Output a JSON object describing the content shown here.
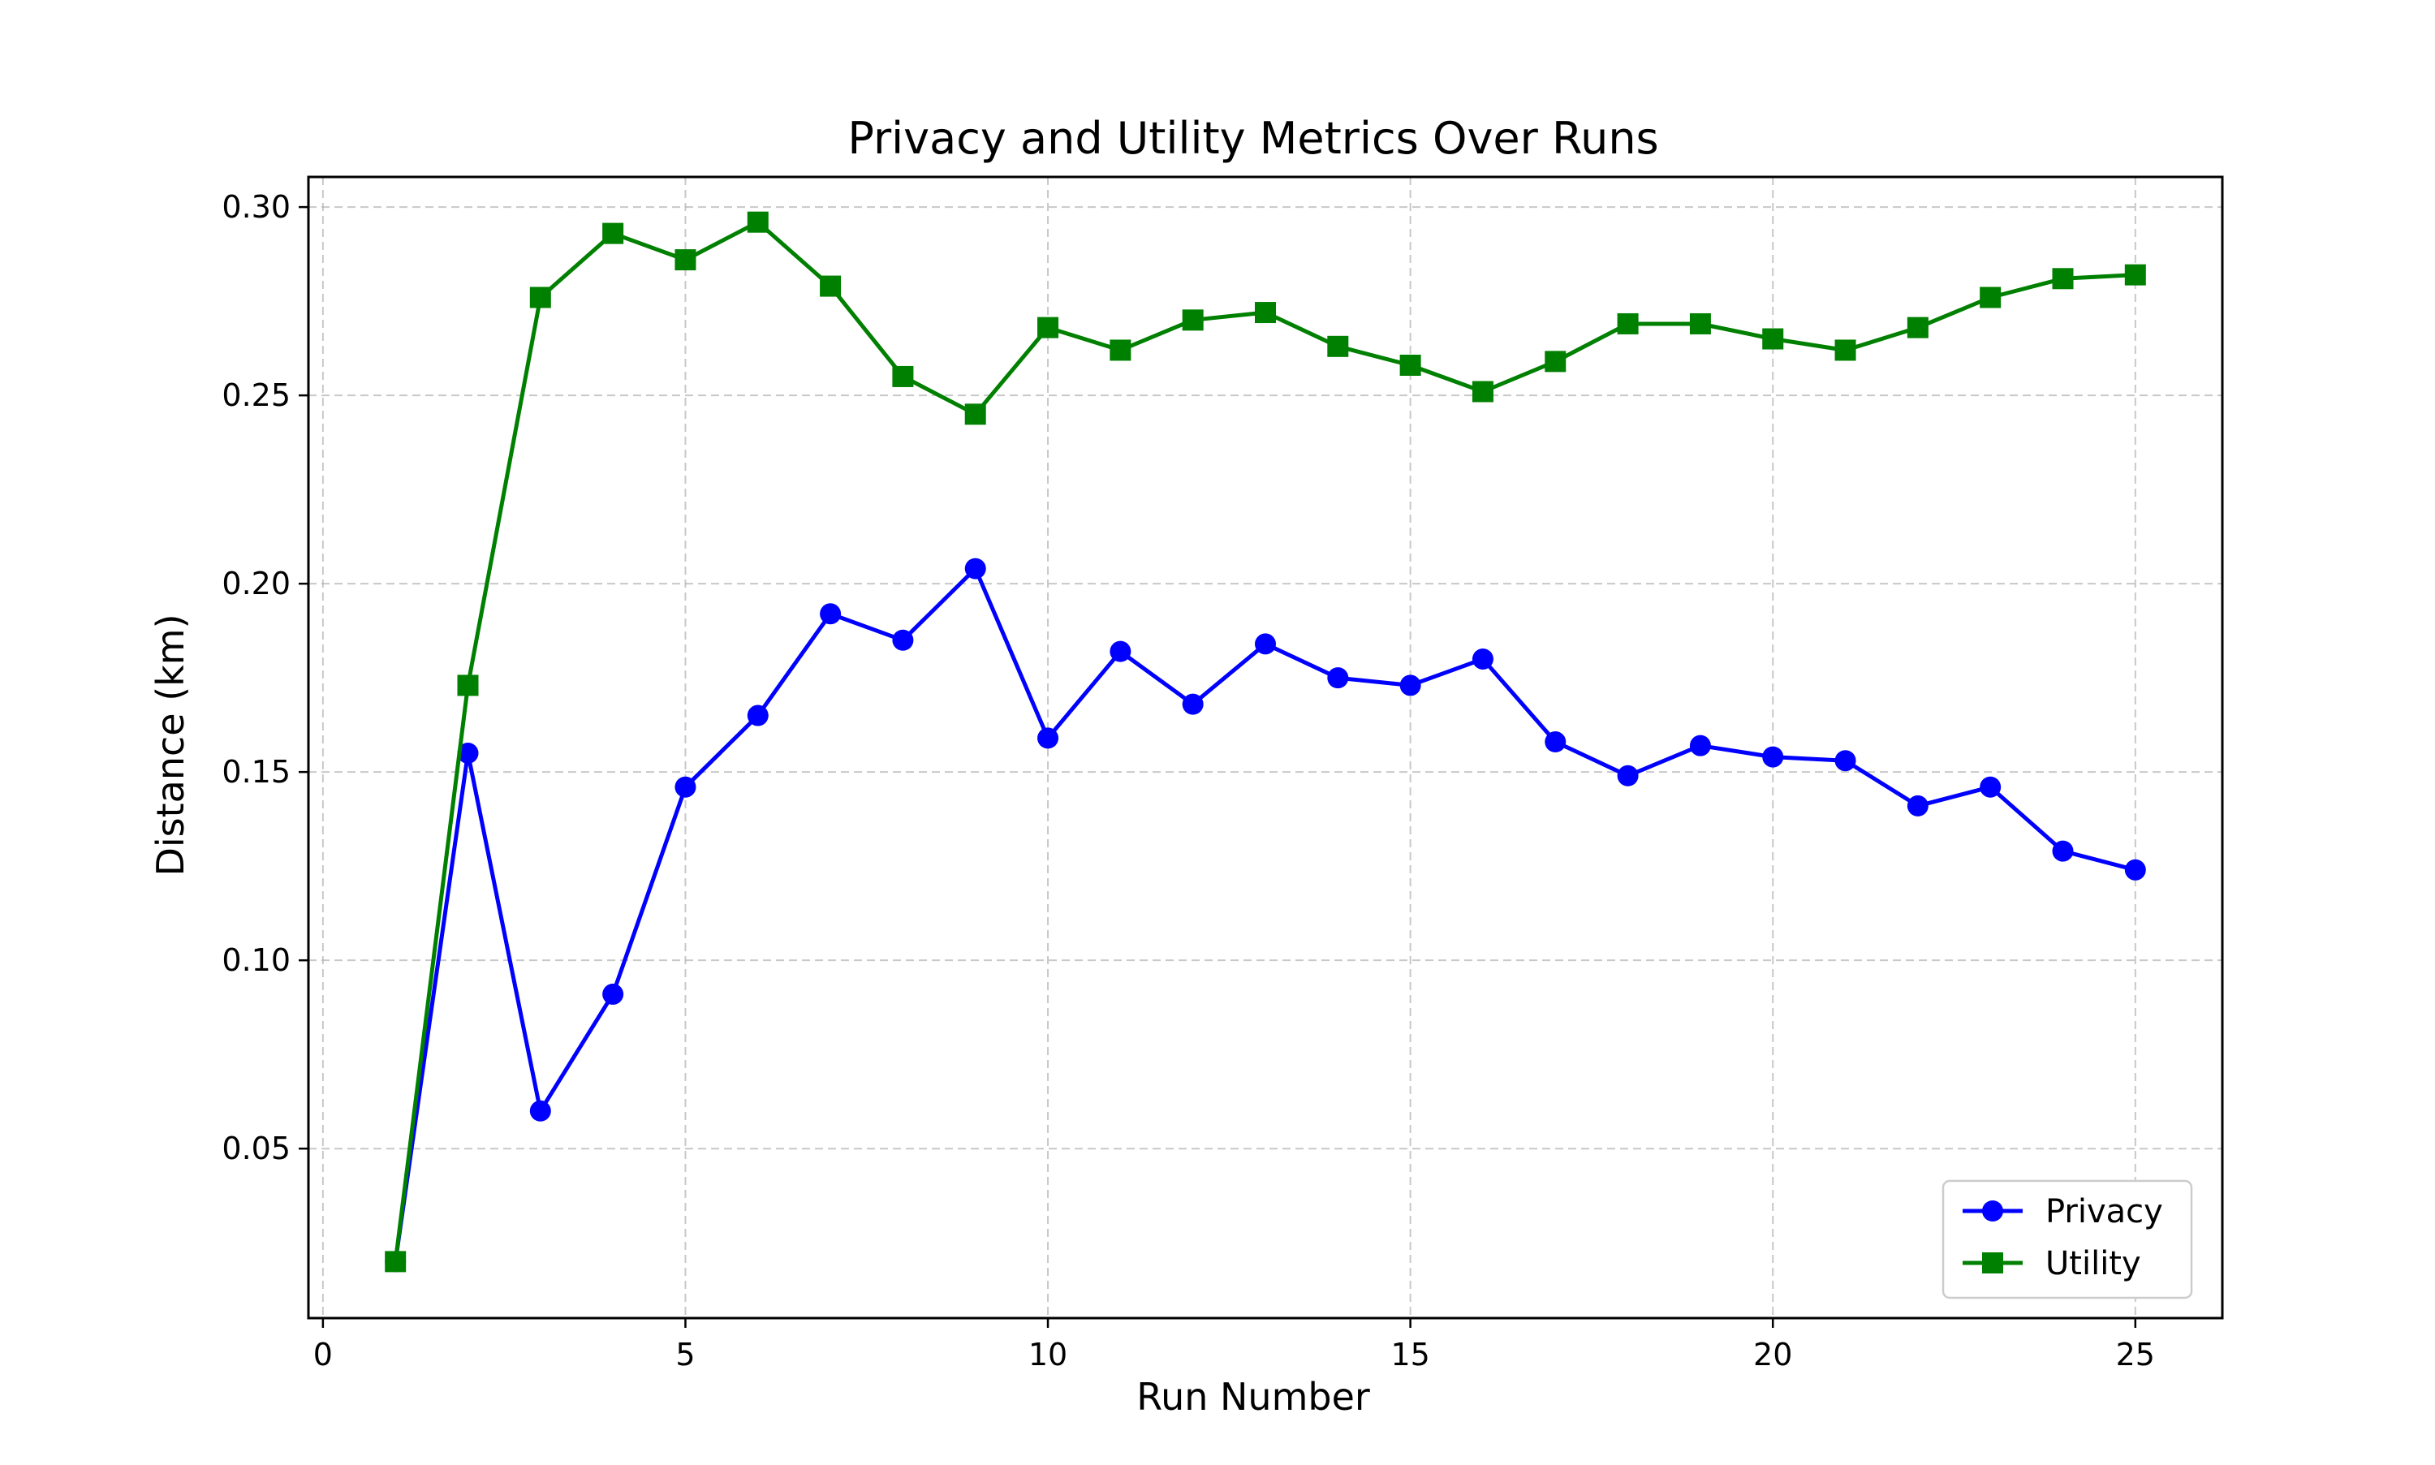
{
  "chart_data": {
    "type": "line",
    "title": "Privacy and Utility Metrics Over Runs",
    "xlabel": "Run Number",
    "ylabel": "Distance (km)",
    "xlim": [
      -0.2,
      26.2
    ],
    "ylim": [
      0.005,
      0.308
    ],
    "xticks": [
      0,
      5,
      10,
      15,
      20,
      25
    ],
    "xtick_labels": [
      "0",
      "5",
      "10",
      "15",
      "20",
      "25"
    ],
    "yticks": [
      0.05,
      0.1,
      0.15,
      0.2,
      0.25,
      0.3
    ],
    "ytick_labels": [
      "0.05",
      "0.10",
      "0.15",
      "0.20",
      "0.25",
      "0.30"
    ],
    "grid": true,
    "legend_position": "lower-right",
    "x": [
      1,
      2,
      3,
      4,
      5,
      6,
      7,
      8,
      9,
      10,
      11,
      12,
      13,
      14,
      15,
      16,
      17,
      18,
      19,
      20,
      21,
      22,
      23,
      24,
      25
    ],
    "series": [
      {
        "name": "Privacy",
        "color": "#0000ff",
        "marker": "circle",
        "values": [
          0.02,
          0.155,
          0.06,
          0.091,
          0.146,
          0.165,
          0.192,
          0.185,
          0.204,
          0.159,
          0.182,
          0.168,
          0.184,
          0.175,
          0.173,
          0.18,
          0.158,
          0.149,
          0.157,
          0.154,
          0.153,
          0.141,
          0.146,
          0.129,
          0.124
        ]
      },
      {
        "name": "Utility",
        "color": "#008000",
        "marker": "square",
        "values": [
          0.02,
          0.173,
          0.276,
          0.293,
          0.286,
          0.296,
          0.279,
          0.255,
          0.245,
          0.268,
          0.262,
          0.27,
          0.272,
          0.263,
          0.258,
          0.251,
          0.259,
          0.269,
          0.269,
          0.265,
          0.262,
          0.268,
          0.276,
          0.281,
          0.282
        ]
      }
    ]
  }
}
